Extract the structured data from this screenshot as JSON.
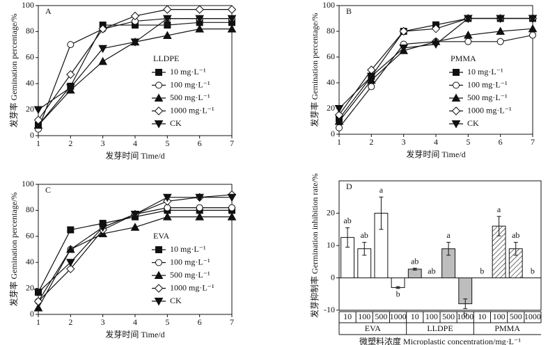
{
  "chart_data": [
    {
      "type": "line",
      "panel": "A",
      "legend_title": "LLDPE",
      "x_label": "发芽时间 Time/d",
      "y_label": "发芽率 Gemination percentage/%",
      "x": [
        1,
        2,
        3,
        4,
        5,
        6,
        7
      ],
      "xlim": [
        1,
        7
      ],
      "xticks": [
        1,
        2,
        3,
        4,
        5,
        6,
        7
      ],
      "ylim": [
        0,
        100
      ],
      "yticks": [
        0,
        20,
        40,
        60,
        80,
        100
      ],
      "series": [
        {
          "name": "10 mg·L⁻¹",
          "marker": "square",
          "color": "#111",
          "values": [
            8,
            38,
            85,
            85,
            85,
            87,
            87
          ]
        },
        {
          "name": "100 mg·L⁻¹",
          "marker": "circle",
          "color": "#111",
          "values": [
            5,
            70,
            82,
            88,
            90,
            90,
            90
          ]
        },
        {
          "name": "500 mg·L⁻¹",
          "marker": "triangle",
          "color": "#111",
          "values": [
            8,
            35,
            57,
            72,
            77,
            82,
            82
          ]
        },
        {
          "name": "1000 mg·L⁻¹",
          "marker": "diamond",
          "color": "#111",
          "values": [
            12,
            47,
            82,
            92,
            97,
            97,
            97
          ]
        },
        {
          "name": "CK",
          "marker": "triangle-down",
          "color": "#111",
          "values": [
            20,
            37,
            67,
            72,
            90,
            90,
            90
          ]
        }
      ]
    },
    {
      "type": "line",
      "panel": "B",
      "legend_title": "PMMA",
      "x_label": "发芽时间 Time/d",
      "y_label": "发芽率 Gemination percentage/%",
      "x": [
        1,
        2,
        3,
        4,
        5,
        6,
        7
      ],
      "xlim": [
        1,
        7
      ],
      "xticks": [
        1,
        2,
        3,
        4,
        5,
        6,
        7
      ],
      "ylim": [
        0,
        100
      ],
      "yticks": [
        0,
        20,
        40,
        60,
        80,
        100
      ],
      "series": [
        {
          "name": "10 mg·L⁻¹",
          "marker": "square",
          "color": "#111",
          "values": [
            12,
            45,
            80,
            85,
            90,
            90,
            90
          ]
        },
        {
          "name": "100 mg·L⁻¹",
          "marker": "circle",
          "color": "#111",
          "values": [
            5,
            37,
            70,
            72,
            72,
            72,
            77
          ]
        },
        {
          "name": "500 mg·L⁻¹",
          "marker": "triangle",
          "color": "#111",
          "values": [
            10,
            42,
            65,
            72,
            77,
            80,
            82
          ]
        },
        {
          "name": "1000 mg·L⁻¹",
          "marker": "diamond",
          "color": "#111",
          "values": [
            15,
            50,
            80,
            82,
            90,
            90,
            90
          ]
        },
        {
          "name": "CK",
          "marker": "triangle-down",
          "color": "#111",
          "values": [
            20,
            45,
            67,
            70,
            90,
            90,
            90
          ]
        }
      ]
    },
    {
      "type": "line",
      "panel": "C",
      "legend_title": "EVA",
      "x_label": "发芽时间 Time/d",
      "y_label": "发芽率 Gemination percentage/%",
      "x": [
        1,
        2,
        3,
        4,
        5,
        6,
        7
      ],
      "xlim": [
        1,
        7
      ],
      "xticks": [
        1,
        2,
        3,
        4,
        5,
        6,
        7
      ],
      "ylim": [
        0,
        100
      ],
      "yticks": [
        0,
        20,
        40,
        60,
        80,
        100
      ],
      "series": [
        {
          "name": "10 mg·L⁻¹",
          "marker": "square",
          "color": "#111",
          "values": [
            17,
            65,
            70,
            75,
            80,
            80,
            80
          ]
        },
        {
          "name": "100 mg·L⁻¹",
          "marker": "circle",
          "color": "#111",
          "values": [
            10,
            50,
            67,
            77,
            82,
            82,
            82
          ]
        },
        {
          "name": "500 mg·L⁻¹",
          "marker": "triangle",
          "color": "#111",
          "values": [
            5,
            50,
            62,
            67,
            75,
            75,
            75
          ]
        },
        {
          "name": "1000 mg·L⁻¹",
          "marker": "diamond",
          "color": "#111",
          "values": [
            10,
            35,
            65,
            77,
            87,
            90,
            92
          ]
        },
        {
          "name": "CK",
          "marker": "triangle-down",
          "color": "#111",
          "values": [
            17,
            40,
            67,
            77,
            90,
            90,
            90
          ]
        }
      ]
    },
    {
      "type": "bar",
      "panel": "D",
      "x_label": "微塑料浓度 Microplastic concentration/mg·L⁻¹",
      "y_label": "发芽抑制率 Germination inhibition rate/%",
      "groups": [
        "EVA",
        "LLDPE",
        "PMMA"
      ],
      "fills": [
        "white",
        "#bdbdbd",
        "hatch"
      ],
      "categories": [
        "10",
        "100",
        "500",
        "1000",
        "10",
        "100",
        "500",
        "1000",
        "10",
        "100",
        "500",
        "1000"
      ],
      "values": [
        12.5,
        9,
        20,
        -3,
        2.7,
        0,
        9,
        -8,
        0,
        16,
        9,
        0
      ],
      "errors": [
        3,
        2,
        5,
        0.3,
        0.3,
        0,
        2,
        1.5,
        0,
        3,
        2,
        0
      ],
      "annotations": [
        "ab",
        "ab",
        "a",
        "b",
        "ab",
        "ab",
        "a",
        "b",
        "b",
        "a",
        "ab",
        "b"
      ],
      "ylim": [
        -10,
        30
      ],
      "yticks": [
        -10,
        0,
        10,
        20
      ]
    }
  ]
}
